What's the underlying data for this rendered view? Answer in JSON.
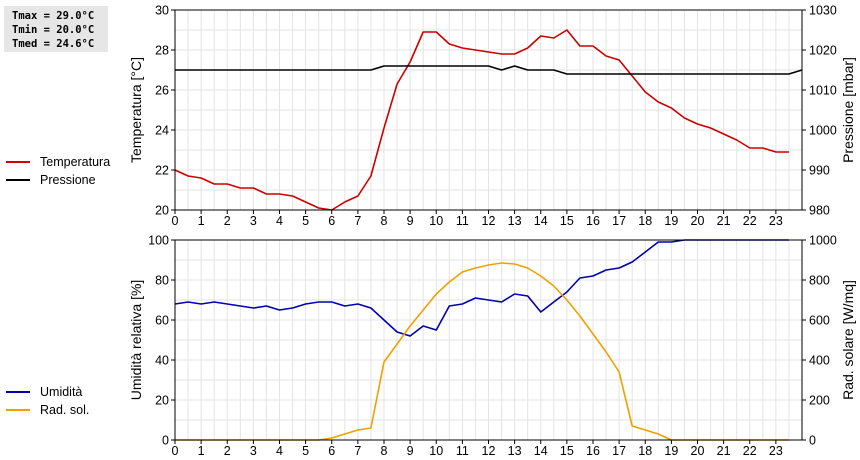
{
  "stats": {
    "tmax": "Tmax = 29.0°C",
    "tmin": "Tmin = 20.0°C",
    "tmed": "Tmed = 24.6°C"
  },
  "chart_data": [
    {
      "type": "line",
      "id": "temp_pressure",
      "ylabel": "Temperatura [°C]",
      "y2label": "Pressione [mbar]",
      "x_ticks": [
        0,
        1,
        2,
        3,
        4,
        5,
        6,
        7,
        8,
        9,
        10,
        11,
        12,
        13,
        14,
        15,
        16,
        17,
        18,
        19,
        20,
        21,
        22,
        23
      ],
      "xlim": [
        0,
        24
      ],
      "ylim": [
        20,
        30
      ],
      "y_ticks": [
        20,
        22,
        24,
        26,
        28,
        30
      ],
      "y2lim": [
        980,
        1030
      ],
      "y2_ticks": [
        980,
        990,
        1000,
        1010,
        1020,
        1030
      ],
      "grid": true,
      "legend_position": "left",
      "series": [
        {
          "name": "Temperatura",
          "color": "#cc0000",
          "axis": "left",
          "x": [
            0,
            0.5,
            1,
            1.5,
            2,
            2.5,
            3,
            3.5,
            4,
            4.5,
            5,
            5.5,
            6,
            6.5,
            7,
            7.5,
            8,
            8.5,
            9,
            9.5,
            10,
            10.5,
            11,
            11.5,
            12,
            12.5,
            13,
            13.5,
            14,
            14.5,
            15,
            15.5,
            16,
            16.5,
            17,
            17.5,
            18,
            18.5,
            19,
            19.5,
            20,
            20.5,
            21,
            21.5,
            22,
            22.5,
            23,
            23.5
          ],
          "y": [
            22.0,
            21.7,
            21.6,
            21.3,
            21.3,
            21.1,
            21.1,
            20.8,
            20.8,
            20.7,
            20.4,
            20.1,
            20.0,
            20.4,
            20.7,
            21.7,
            24.1,
            26.3,
            27.4,
            28.9,
            28.9,
            28.3,
            28.1,
            28.0,
            27.9,
            27.8,
            27.8,
            28.1,
            28.7,
            28.6,
            29.0,
            28.2,
            28.2,
            27.7,
            27.5,
            26.7,
            25.9,
            25.4,
            25.1,
            24.6,
            24.3,
            24.1,
            23.8,
            23.5,
            23.1,
            23.1,
            22.9,
            22.9
          ]
        },
        {
          "name": "Pressione",
          "color": "#000000",
          "axis": "right",
          "x": [
            0,
            7.5,
            8,
            12,
            12.5,
            13,
            13.5,
            14.5,
            15,
            23.5,
            24
          ],
          "y": [
            1015,
            1015,
            1016,
            1016,
            1015,
            1016,
            1015,
            1015,
            1014,
            1014,
            1015
          ]
        }
      ]
    },
    {
      "type": "line",
      "id": "humidity_radiation",
      "ylabel": "Umidità relativa [%]",
      "y2label": "Rad. solare [W/mq]",
      "x_ticks": [
        0,
        1,
        2,
        3,
        4,
        5,
        6,
        7,
        8,
        9,
        10,
        11,
        12,
        13,
        14,
        15,
        16,
        17,
        18,
        19,
        20,
        21,
        22,
        23
      ],
      "xlim": [
        0,
        24
      ],
      "ylim": [
        0,
        100
      ],
      "y_ticks": [
        0,
        20,
        40,
        60,
        80,
        100
      ],
      "y2lim": [
        0,
        1000
      ],
      "y2_ticks": [
        0,
        200,
        400,
        600,
        800,
        1000
      ],
      "grid": true,
      "legend_position": "left",
      "series": [
        {
          "name": "Umidità",
          "color": "#0000b0",
          "axis": "left",
          "x": [
            0,
            0.5,
            1,
            1.5,
            2,
            2.5,
            3,
            3.5,
            4,
            4.5,
            5,
            5.5,
            6,
            6.5,
            7,
            7.5,
            8,
            8.5,
            9,
            9.5,
            10,
            10.5,
            11,
            11.5,
            12,
            12.5,
            13,
            13.5,
            14,
            14.5,
            15,
            15.5,
            16,
            16.5,
            17,
            17.5,
            18,
            18.5,
            19,
            19.5,
            20,
            20.5,
            21,
            21.5,
            22,
            22.5,
            23,
            23.5
          ],
          "y": [
            68,
            69,
            68,
            69,
            68,
            67,
            66,
            67,
            65,
            66,
            68,
            69,
            69,
            67,
            68,
            66,
            60,
            54,
            52,
            57,
            55,
            67,
            68,
            71,
            70,
            69,
            73,
            72,
            64,
            69,
            74,
            81,
            82,
            85,
            86,
            89,
            94,
            99,
            99,
            100,
            100,
            100,
            100,
            100,
            100,
            100,
            100,
            100
          ]
        },
        {
          "name": "Rad. sol.",
          "color": "#f0a000",
          "axis": "right",
          "x": [
            0,
            0.5,
            1,
            1.5,
            2,
            2.5,
            3,
            3.5,
            4,
            4.5,
            5,
            5.5,
            6,
            6.5,
            7,
            7.5,
            8,
            8.5,
            9,
            9.5,
            10,
            10.5,
            11,
            11.5,
            12,
            12.5,
            13,
            13.5,
            14,
            14.5,
            15,
            15.5,
            16,
            16.5,
            17,
            17.5,
            18,
            18.5,
            19,
            19.5,
            20,
            20.5,
            21,
            21.5,
            22,
            22.5,
            23,
            23.5
          ],
          "y": [
            0,
            0,
            0,
            0,
            0,
            0,
            0,
            0,
            0,
            0,
            0,
            0,
            10,
            30,
            50,
            60,
            390,
            480,
            570,
            650,
            730,
            790,
            840,
            860,
            875,
            885,
            880,
            860,
            820,
            770,
            700,
            620,
            530,
            440,
            340,
            70,
            50,
            30,
            0,
            0,
            0,
            0,
            0,
            0,
            0,
            0,
            0,
            0
          ]
        }
      ]
    }
  ]
}
